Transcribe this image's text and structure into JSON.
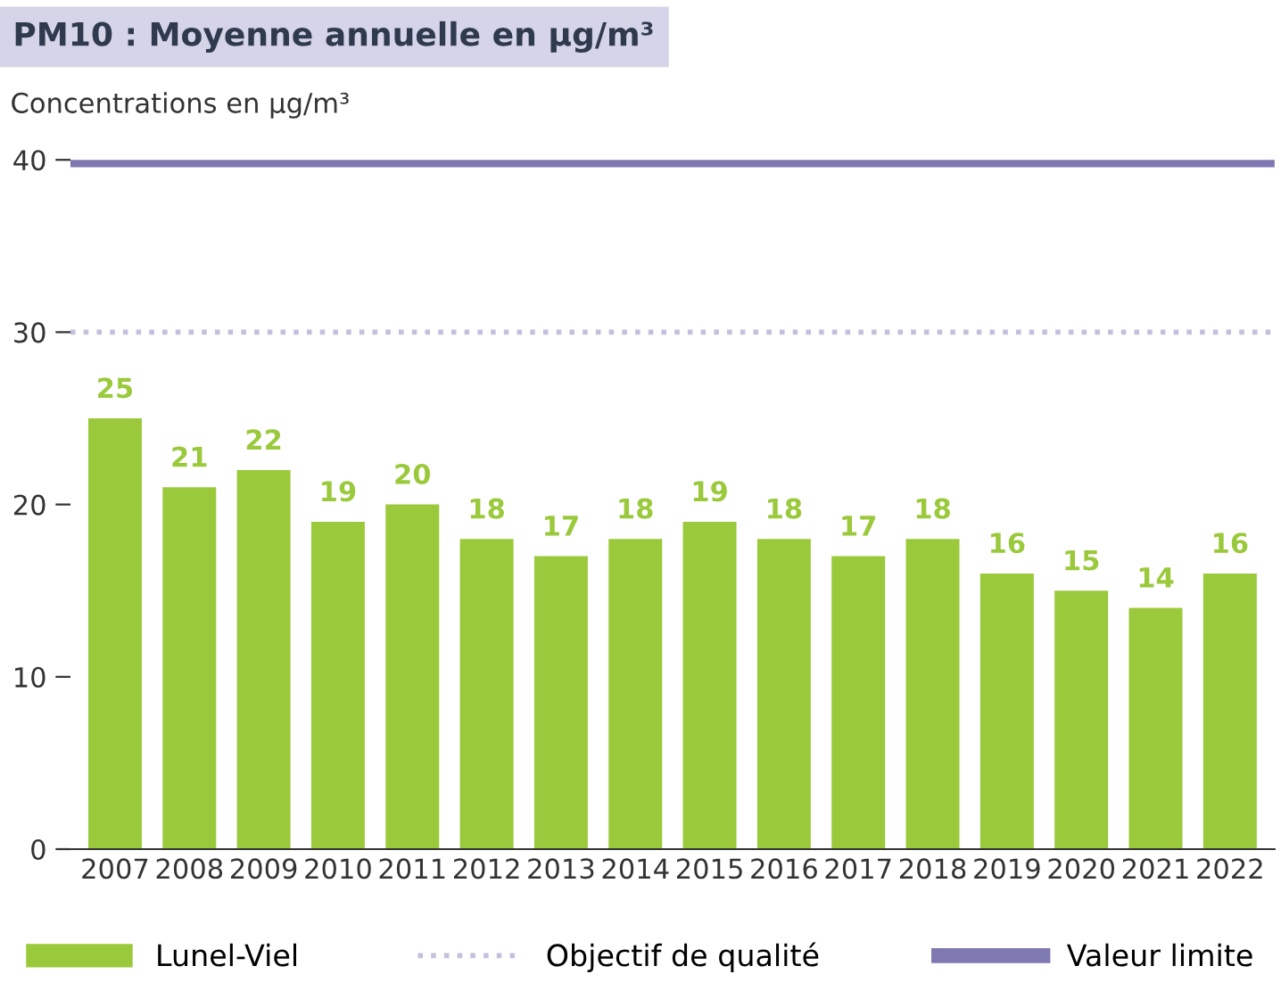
{
  "chart_data": {
    "type": "bar",
    "title": "PM10 : Moyenne annuelle en µg/m³",
    "ylabel": "Concentrations en µg/m³",
    "categories": [
      "2007",
      "2008",
      "2009",
      "2010",
      "2011",
      "2012",
      "2013",
      "2014",
      "2015",
      "2016",
      "2017",
      "2018",
      "2019",
      "2020",
      "2021",
      "2022"
    ],
    "series": [
      {
        "name": "Lunel-Viel",
        "color": "#9bc93c",
        "values": [
          25,
          21,
          22,
          19,
          20,
          18,
          17,
          18,
          19,
          18,
          17,
          18,
          16,
          15,
          14,
          16
        ]
      }
    ],
    "ylim": [
      0,
      40
    ],
    "yticks": [
      0,
      10,
      20,
      30,
      40
    ],
    "ref_lines": [
      {
        "axis": "y",
        "value": 30,
        "label": "Objectif de qualité",
        "color": "#c3c0dc",
        "line_style": "dotted"
      },
      {
        "axis": "y",
        "value": 40,
        "label": "Valeur limite",
        "color": "#7f79b1",
        "line_style": "solid"
      }
    ],
    "data_labels": true,
    "grid": false,
    "legend": "bottom"
  }
}
